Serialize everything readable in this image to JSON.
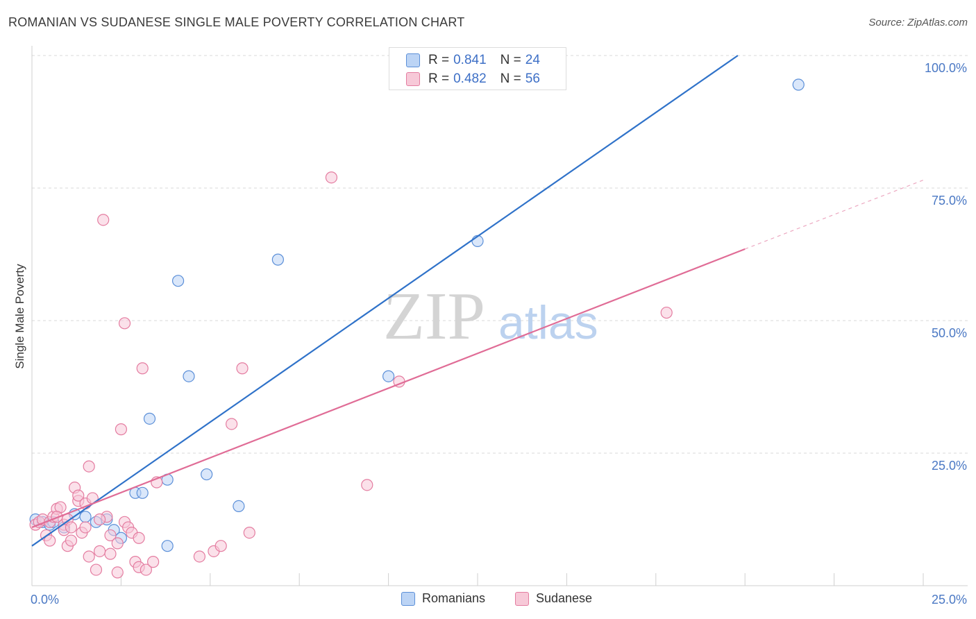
{
  "title": "ROMANIAN VS SUDANESE SINGLE MALE POVERTY CORRELATION CHART",
  "source_prefix": "Source: ",
  "source_name": "ZipAtlas.com",
  "watermark": {
    "zip": "ZIP",
    "atlas": "atlas"
  },
  "colors": {
    "blue": "#5b8fd8",
    "blue_fill": "#bcd4f5",
    "blue_line": "#2f72c9",
    "pink": "#e47ca0",
    "pink_fill": "#f7c9d8",
    "pink_line": "#e06c96",
    "tick_text": "#4a78c4",
    "grid": "#d9d9d9"
  },
  "legend": {
    "items": [
      {
        "r_label": "R =",
        "r_value": "0.841",
        "n_label": "N =",
        "n_value": "24"
      },
      {
        "r_label": "R =",
        "r_value": "0.482",
        "n_label": "N =",
        "n_value": "56"
      }
    ]
  },
  "bottom_legend": [
    "Romanians",
    "Sudanese"
  ],
  "chart_data": {
    "type": "scatter",
    "title": "ROMANIAN VS SUDANESE SINGLE MALE POVERTY CORRELATION CHART",
    "xlabel": "",
    "ylabel": "Single Male Poverty",
    "xlim": [
      0,
      25
    ],
    "ylim": [
      0,
      100
    ],
    "x_tick_labels": [
      "0.0%",
      "25.0%"
    ],
    "y_tick_labels": [
      "25.0%",
      "50.0%",
      "75.0%",
      "100.0%"
    ],
    "y_ticks": [
      25,
      50,
      75,
      100
    ],
    "series": [
      {
        "name": "Romanians",
        "color": "blue",
        "points": [
          [
            0.1,
            12.5
          ],
          [
            0.3,
            12.0
          ],
          [
            0.5,
            11.5
          ],
          [
            0.6,
            12.0
          ],
          [
            0.9,
            11.0
          ],
          [
            1.2,
            13.5
          ],
          [
            1.5,
            13.0
          ],
          [
            1.8,
            12.0
          ],
          [
            2.1,
            12.5
          ],
          [
            2.3,
            10.5
          ],
          [
            2.5,
            9.0
          ],
          [
            2.9,
            17.5
          ],
          [
            3.1,
            17.5
          ],
          [
            3.3,
            31.5
          ],
          [
            3.8,
            20.0
          ],
          [
            3.8,
            7.5
          ],
          [
            4.1,
            57.5
          ],
          [
            4.4,
            39.5
          ],
          [
            4.9,
            21.0
          ],
          [
            5.8,
            15.0
          ],
          [
            6.9,
            61.5
          ],
          [
            10.0,
            39.5
          ],
          [
            12.5,
            65.0
          ],
          [
            21.5,
            94.5
          ]
        ],
        "trend": {
          "x": [
            0,
            19.8
          ],
          "y": [
            7.5,
            100
          ]
        }
      },
      {
        "name": "Sudanese",
        "color": "pink",
        "points": [
          [
            0.1,
            11.5
          ],
          [
            0.2,
            12.0
          ],
          [
            0.3,
            12.5
          ],
          [
            0.4,
            9.5
          ],
          [
            0.5,
            12.0
          ],
          [
            0.6,
            13.0
          ],
          [
            0.7,
            14.5
          ],
          [
            0.8,
            14.8
          ],
          [
            0.9,
            11.5
          ],
          [
            1.0,
            12.5
          ],
          [
            1.0,
            7.5
          ],
          [
            1.1,
            8.5
          ],
          [
            1.2,
            18.5
          ],
          [
            1.3,
            16.0
          ],
          [
            1.3,
            17.0
          ],
          [
            1.4,
            10.0
          ],
          [
            1.5,
            11.0
          ],
          [
            1.5,
            15.5
          ],
          [
            1.6,
            22.5
          ],
          [
            1.7,
            16.5
          ],
          [
            1.8,
            3.0
          ],
          [
            1.9,
            6.5
          ],
          [
            2.1,
            13.0
          ],
          [
            2.2,
            9.5
          ],
          [
            2.4,
            8.0
          ],
          [
            2.4,
            2.5
          ],
          [
            2.6,
            12.0
          ],
          [
            2.7,
            11.0
          ],
          [
            2.8,
            10.0
          ],
          [
            2.9,
            4.5
          ],
          [
            3.0,
            3.5
          ],
          [
            3.2,
            3.0
          ],
          [
            3.4,
            4.5
          ],
          [
            2.6,
            49.5
          ],
          [
            3.1,
            41.0
          ],
          [
            2.0,
            69.0
          ],
          [
            2.5,
            29.5
          ],
          [
            3.5,
            19.5
          ],
          [
            5.1,
            6.5
          ],
          [
            5.3,
            7.5
          ],
          [
            5.6,
            30.5
          ],
          [
            5.9,
            41.0
          ],
          [
            6.1,
            10.0
          ],
          [
            8.4,
            77.0
          ],
          [
            9.4,
            19.0
          ],
          [
            10.3,
            38.5
          ],
          [
            17.8,
            51.5
          ],
          [
            0.7,
            13.0
          ],
          [
            1.9,
            12.5
          ],
          [
            0.9,
            10.5
          ],
          [
            1.1,
            11.0
          ],
          [
            2.2,
            6.0
          ],
          [
            1.6,
            5.5
          ],
          [
            0.5,
            8.5
          ],
          [
            3.0,
            9.0
          ],
          [
            4.7,
            5.5
          ]
        ],
        "trend": {
          "x": [
            0,
            20.0
          ],
          "y": [
            11.0,
            63.5
          ]
        },
        "trend_dashed": {
          "x": [
            20.0,
            25.0
          ],
          "y": [
            63.5,
            76.5
          ]
        }
      }
    ]
  }
}
